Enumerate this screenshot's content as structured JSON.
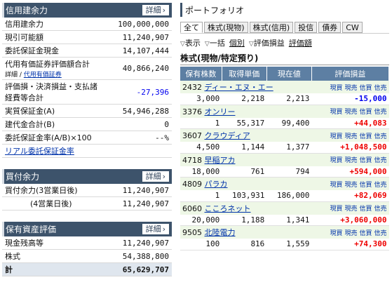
{
  "margin_panel": {
    "title": "信用建余力",
    "detail": "詳細",
    "rows": [
      {
        "label": "信用建余力",
        "value": "100,000,000"
      },
      {
        "label": "現引可能額",
        "value": "11,240,907"
      },
      {
        "label": "委託保証金現金",
        "value": "14,107,444"
      },
      {
        "label": "代用有価証券評価額合計",
        "value": "40,866,240"
      },
      {
        "label": "評価損・決済損益・支払諸経費等合計",
        "value": "-27,396"
      },
      {
        "label": "実質保証金(A)",
        "value": "54,946,288"
      },
      {
        "label": "建代金合計(B)",
        "value": "0"
      },
      {
        "label": "委託保証金率(A/B)×100",
        "value": "--%"
      }
    ],
    "detail_sub": "詳細",
    "sub_link": "代用有価証券",
    "real_link": "リアル委託保証金率"
  },
  "buy_panel": {
    "title": "買付余力",
    "detail": "詳細",
    "rows": [
      {
        "label": "買付余力(3営業日後)",
        "value": "11,240,907"
      },
      {
        "label": "(4営業日後)",
        "value": "11,240,907"
      }
    ]
  },
  "asset_panel": {
    "title": "保有資産評価",
    "detail": "詳細",
    "rows": [
      {
        "label": "現金残高等",
        "value": "11,240,907"
      },
      {
        "label": "株式",
        "value": "54,388,800"
      },
      {
        "label": "計",
        "value": "65,629,707"
      }
    ]
  },
  "portfolio": {
    "title": "ポートフォリオ",
    "tabs": [
      "全て",
      "株式(現物)",
      "株式(信用)",
      "投信",
      "債券",
      "CW"
    ],
    "opts": [
      "表示",
      "一括",
      "個別",
      "評価損益",
      "評価額"
    ],
    "subhead": "株式(現物/特定預り)",
    "columns": [
      "保有株数",
      "取得単価",
      "現在値",
      "評価損益"
    ],
    "links": [
      "現買",
      "現売",
      "信買",
      "信売"
    ],
    "holdings": [
      {
        "code": "2432",
        "name": "ディー・エヌ・エー",
        "qty": "3,000",
        "cost": "2,218",
        "price": "2,213",
        "pl": "-15,000",
        "sign": "loss"
      },
      {
        "code": "3376",
        "name": "オンリー",
        "qty": "1",
        "cost": "55,317",
        "price": "99,400",
        "pl": "+44,083",
        "sign": "gain"
      },
      {
        "code": "3607",
        "name": "クラウディア",
        "qty": "4,500",
        "cost": "1,144",
        "price": "1,377",
        "pl": "+1,048,500",
        "sign": "gain"
      },
      {
        "code": "4718",
        "name": "早稲アカ",
        "qty": "18,000",
        "cost": "761",
        "price": "794",
        "pl": "+594,000",
        "sign": "gain"
      },
      {
        "code": "4809",
        "name": "パラカ",
        "qty": "1",
        "cost": "103,931",
        "price": "186,000",
        "pl": "+82,069",
        "sign": "gain"
      },
      {
        "code": "6060",
        "name": "こころネット",
        "qty": "20,000",
        "cost": "1,188",
        "price": "1,341",
        "pl": "+3,060,000",
        "sign": "gain"
      },
      {
        "code": "9505",
        "name": "北陸電力",
        "qty": "100",
        "cost": "816",
        "price": "1,559",
        "pl": "+74,300",
        "sign": "gain"
      }
    ]
  }
}
